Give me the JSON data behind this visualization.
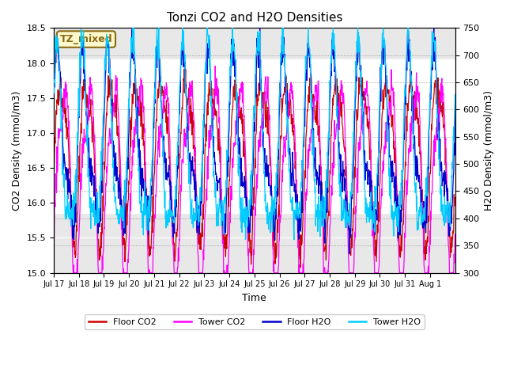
{
  "title": "Tonzi CO2 and H2O Densities",
  "xlabel": "Time",
  "ylabel_left": "CO2 Density (mmol/m3)",
  "ylabel_right": "H2O Density (mmol/m3)",
  "ylim_left": [
    15.0,
    18.5
  ],
  "ylim_right": [
    300,
    750
  ],
  "x_tick_labels": [
    "Jul 17",
    "Jul 18",
    "Jul 19",
    "Jul 20",
    "Jul 21",
    "Jul 22",
    "Jul 23",
    "Jul 24",
    "Jul 25",
    "Jul 26",
    "Jul 27",
    "Jul 28",
    "Jul 29",
    "Jul 30",
    "Jul 31",
    "Aug 1"
  ],
  "shaded_region": [
    15.85,
    18.05
  ],
  "annotation_text": "TZ_mixed",
  "annotation_color": "#8B6914",
  "annotation_bg": "#FFFACD",
  "colors": {
    "floor_co2": "#CC0000",
    "tower_co2": "#FF00FF",
    "floor_h2o": "#0000CC",
    "tower_h2o": "#00CCFF"
  },
  "legend_labels": [
    "Floor CO2",
    "Tower CO2",
    "Floor H2O",
    "Tower H2O"
  ],
  "background_color": "#FFFFFF",
  "plot_bg_color": "#E8E8E8",
  "n_points": 1152,
  "seed": 42
}
